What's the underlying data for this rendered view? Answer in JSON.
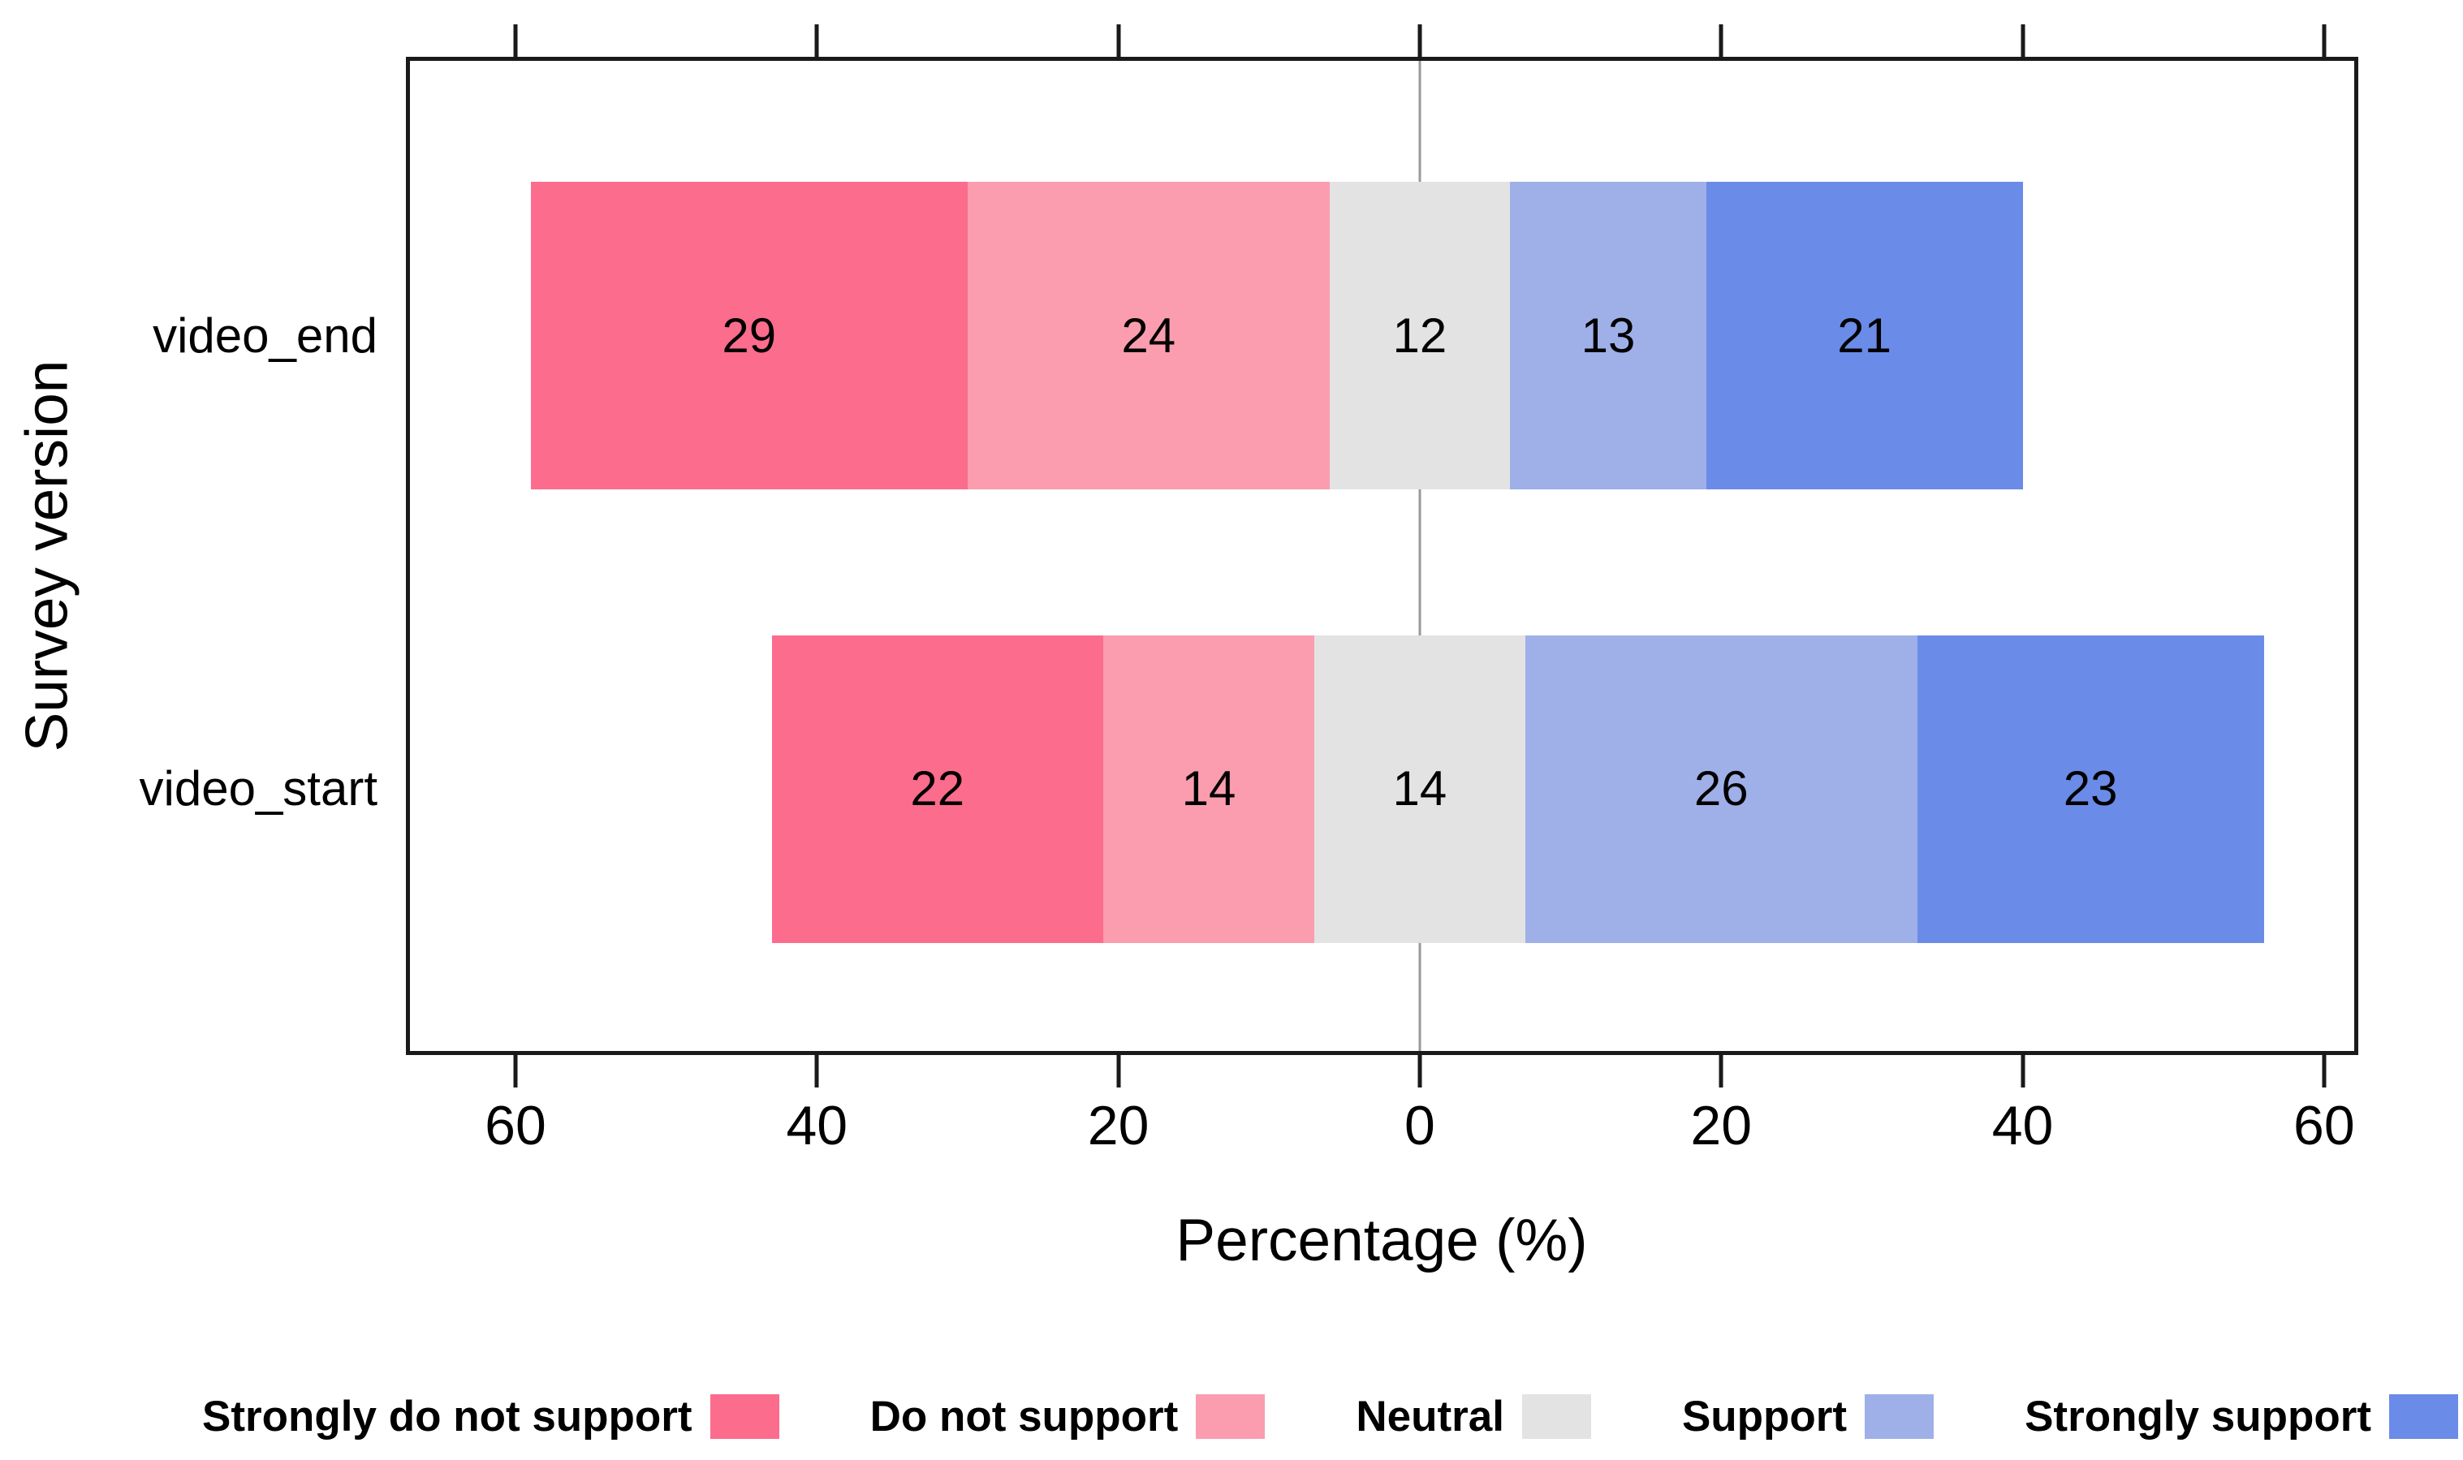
{
  "chart_data": {
    "type": "bar",
    "variant": "diverging-stacked-horizontal-likert",
    "title": "",
    "xlabel": "Percentage (%)",
    "ylabel": "Survey version",
    "categories": [
      "video_end",
      "video_start"
    ],
    "series": [
      {
        "name": "Strongly do not support",
        "color": "#FC6C8C",
        "values": [
          29,
          22
        ]
      },
      {
        "name": "Do not support",
        "color": "#FB9DAF",
        "values": [
          24,
          14
        ]
      },
      {
        "name": "Neutral",
        "color": "#E3E3E3",
        "values": [
          12,
          14
        ]
      },
      {
        "name": "Support",
        "color": "#9FB0E8",
        "values": [
          13,
          26
        ]
      },
      {
        "name": "Strongly support",
        "color": "#6A8BE7",
        "values": [
          21,
          23
        ]
      }
    ],
    "neutral_index": 2,
    "neutral_centered_on_zero": true,
    "x_ticks": [
      -60,
      -40,
      -20,
      0,
      20,
      40,
      60
    ],
    "x_tick_labels": [
      "60",
      "40",
      "20",
      "0",
      "20",
      "40",
      "60"
    ],
    "xlim": [
      -67,
      62
    ],
    "zero_line_color": "#999999",
    "axis_color": "#1a1a1a",
    "grid": false,
    "legend_position": "bottom"
  }
}
